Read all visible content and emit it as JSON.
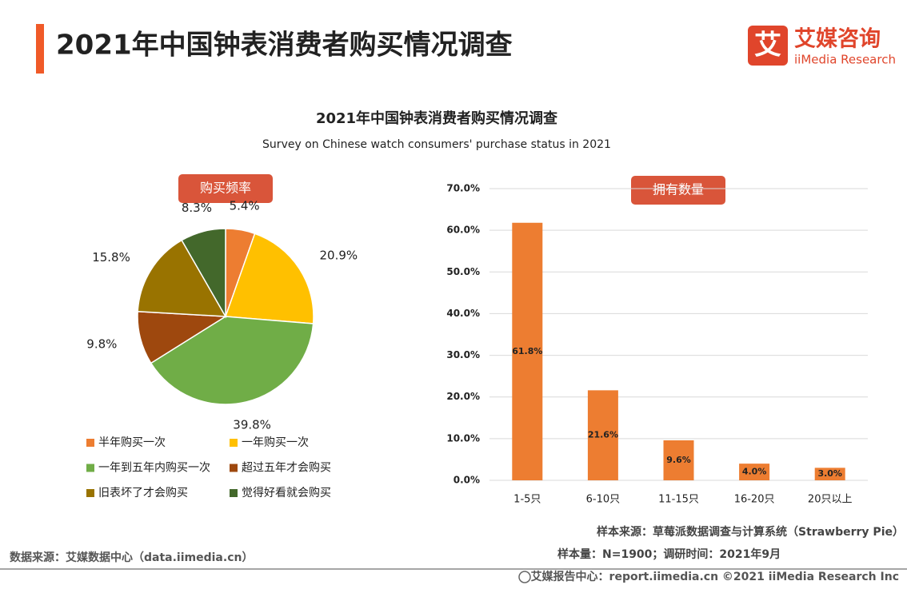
{
  "header": {
    "title": "2021年中国钟表消费者购买情况调查",
    "logo_mark": "艾",
    "logo_cn": "艾媒咨询",
    "logo_en": "iiMedia Research"
  },
  "figure": {
    "title": "2021年中国钟表消费者购买情况调查",
    "subtitle": "Survey on Chinese watch consumers' purchase status in 2021"
  },
  "chart_data": [
    {
      "type": "pie",
      "title": "购买频率",
      "categories": [
        "半年购买一次",
        "一年购买一次",
        "一年到五年内购买一次",
        "超过五年才会购买",
        "旧表坏了才会购买",
        "觉得好看就会购买"
      ],
      "values": [
        5.4,
        20.9,
        39.8,
        9.8,
        15.8,
        8.3
      ],
      "value_labels": [
        "5.4%",
        "20.9%",
        "39.8%",
        "9.8%",
        "15.8%",
        "8.3%"
      ],
      "colors": [
        "#ed7d31",
        "#ffc000",
        "#70ad47",
        "#9e480e",
        "#997300",
        "#43682b"
      ]
    },
    {
      "type": "bar",
      "title": "拥有数量",
      "categories": [
        "1-5只",
        "6-10只",
        "11-15只",
        "16-20只",
        "20只以上"
      ],
      "values": [
        61.8,
        21.6,
        9.6,
        4.0,
        3.0
      ],
      "value_labels": [
        "61.8%",
        "21.6%",
        "9.6%",
        "4.0%",
        "3.0%"
      ],
      "color": "#ed7d31",
      "ylim": [
        0,
        70
      ],
      "yticks": [
        {
          "value": 0,
          "label": "0.0%"
        },
        {
          "value": 10,
          "label": "10.0%"
        },
        {
          "value": 20,
          "label": "20.0%"
        },
        {
          "value": 30,
          "label": "30.0%"
        },
        {
          "value": 40,
          "label": "40.0%"
        },
        {
          "value": 50,
          "label": "50.0%"
        },
        {
          "value": 60,
          "label": "60.0%"
        },
        {
          "value": 70,
          "label": "70.0%"
        }
      ],
      "grid": true
    }
  ],
  "footer": {
    "sample_source": "样本来源：草莓派数据调查与计算系统（Strawberry Pie）",
    "sample_size": "样本量：N=1900；调研时间：2021年9月",
    "data_source": "数据来源：艾媒数据中心（data.iimedia.cn）",
    "copyright": "艾媒报告中心：report.iimedia.cn  ©2021  iiMedia Research  Inc"
  }
}
